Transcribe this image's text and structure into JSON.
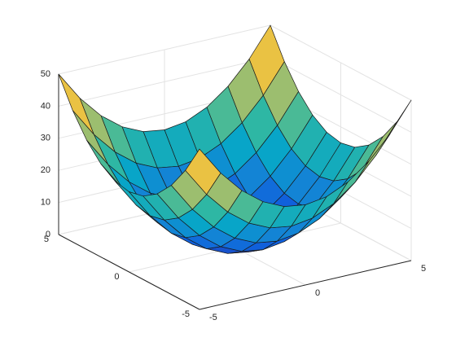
{
  "chart_data": {
    "type": "surface",
    "x": [
      -5,
      -4,
      -3,
      -2,
      -1,
      0,
      1,
      2,
      3,
      4,
      5
    ],
    "y": [
      -5,
      -4,
      -3,
      -2,
      -1,
      0,
      1,
      2,
      3,
      4,
      5
    ],
    "z": [
      [
        50,
        41,
        34,
        29,
        26,
        25,
        26,
        29,
        34,
        41,
        50
      ],
      [
        41,
        32,
        25,
        20,
        17,
        16,
        17,
        20,
        25,
        32,
        41
      ],
      [
        34,
        25,
        18,
        13,
        10,
        9,
        10,
        13,
        18,
        25,
        34
      ],
      [
        29,
        20,
        13,
        8,
        5,
        4,
        5,
        8,
        13,
        20,
        29
      ],
      [
        26,
        17,
        10,
        5,
        2,
        1,
        2,
        5,
        10,
        17,
        26
      ],
      [
        25,
        16,
        9,
        4,
        1,
        0,
        1,
        4,
        9,
        16,
        25
      ],
      [
        26,
        17,
        10,
        5,
        2,
        1,
        2,
        5,
        10,
        17,
        26
      ],
      [
        29,
        20,
        13,
        8,
        5,
        4,
        5,
        8,
        13,
        20,
        29
      ],
      [
        34,
        25,
        18,
        13,
        10,
        9,
        10,
        13,
        18,
        25,
        34
      ],
      [
        41,
        32,
        25,
        20,
        17,
        16,
        17,
        20,
        25,
        32,
        41
      ],
      [
        50,
        41,
        34,
        29,
        26,
        25,
        26,
        29,
        34,
        41,
        50
      ]
    ],
    "xlim": [
      -5,
      5
    ],
    "xticks": [
      -5,
      0,
      5
    ],
    "ylim": [
      -5,
      5
    ],
    "yticks": [
      -5,
      0,
      5
    ],
    "zlim": [
      0,
      50
    ],
    "zticks": [
      0,
      10,
      20,
      30,
      40,
      50
    ],
    "colormap": "parula",
    "grid": true
  }
}
